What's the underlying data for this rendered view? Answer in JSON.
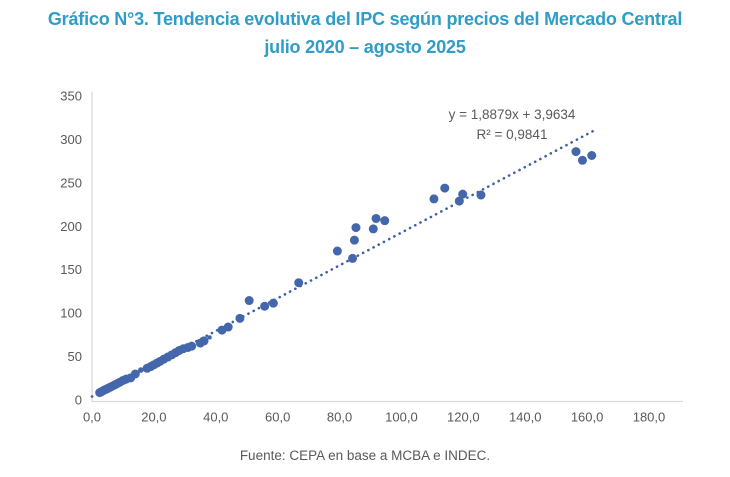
{
  "title": {
    "line1": "Gráfico N°3. Tendencia evolutiva del IPC según precios del Mercado Central",
    "line2": "julio 2020 – agosto 2025",
    "color": "#2f9dc8"
  },
  "annotation": {
    "equation": "y = 1,8879x + 3,9634",
    "r_squared": "R² = 0,9841"
  },
  "footer": "Fuente: CEPA en base a MCBA e INDEC.",
  "colors": {
    "point": "#4466ab",
    "trendline": "#3d5fa7",
    "axis_line": "#d9d9d9",
    "tick_text": "#595959"
  },
  "chart_data": {
    "type": "scatter",
    "title": "Gráfico N°3. Tendencia evolutiva del IPC según precios del Mercado Central julio 2020 – agosto 2025",
    "xlabel": "",
    "ylabel": "",
    "xlim": [
      0,
      180
    ],
    "ylim": [
      0,
      350
    ],
    "grid": false,
    "legend": false,
    "x_ticks": [
      {
        "value": 0,
        "label": "0,0"
      },
      {
        "value": 20,
        "label": "20,0"
      },
      {
        "value": 40,
        "label": "40,0"
      },
      {
        "value": 60,
        "label": "60,0"
      },
      {
        "value": 80,
        "label": "80,0"
      },
      {
        "value": 100,
        "label": "100,0"
      },
      {
        "value": 120,
        "label": "120,0"
      },
      {
        "value": 140,
        "label": "140,0"
      },
      {
        "value": 160,
        "label": "160,0"
      },
      {
        "value": 180,
        "label": "180,0"
      }
    ],
    "y_ticks": [
      {
        "value": 0,
        "label": "0"
      },
      {
        "value": 50,
        "label": "50"
      },
      {
        "value": 100,
        "label": "100"
      },
      {
        "value": 150,
        "label": "150"
      },
      {
        "value": 200,
        "label": "200"
      },
      {
        "value": 250,
        "label": "250"
      },
      {
        "value": 300,
        "label": "300"
      },
      {
        "value": 350,
        "label": "350"
      }
    ],
    "points": [
      [
        2.5,
        8.5
      ],
      [
        3.0,
        9.5
      ],
      [
        3.5,
        10.5
      ],
      [
        4.0,
        11.5
      ],
      [
        4.6,
        12.5
      ],
      [
        5.2,
        13.5
      ],
      [
        5.9,
        14.8
      ],
      [
        6.6,
        16.0
      ],
      [
        7.4,
        17.5
      ],
      [
        8.2,
        19.0
      ],
      [
        9.0,
        20.5
      ],
      [
        10.0,
        22.5
      ],
      [
        11.0,
        24.0
      ],
      [
        12.5,
        25.5
      ],
      [
        14.0,
        30.0
      ],
      [
        15.8,
        34.5,
        2.8
      ],
      [
        17.8,
        36.5
      ],
      [
        19.0,
        38.5
      ],
      [
        20.0,
        40.5
      ],
      [
        21.0,
        42.5
      ],
      [
        22.0,
        44.5
      ],
      [
        23.2,
        47.0
      ],
      [
        24.5,
        49.5
      ],
      [
        25.8,
        52.0
      ],
      [
        27.0,
        54.5
      ],
      [
        28.2,
        57.0
      ],
      [
        29.5,
        59.0
      ],
      [
        31.0,
        60.5
      ],
      [
        32.2,
        62.0
      ],
      [
        35.0,
        65.5
      ],
      [
        36.2,
        68.0
      ],
      [
        38.0,
        72.0,
        2.2
      ],
      [
        42.0,
        80.5
      ],
      [
        44.0,
        84.0
      ],
      [
        47.8,
        94.0
      ],
      [
        50.8,
        114.5
      ],
      [
        55.8,
        108.0
      ],
      [
        58.6,
        111.5
      ],
      [
        66.8,
        135.0
      ],
      [
        79.3,
        171.5
      ],
      [
        84.2,
        163.0
      ],
      [
        84.8,
        184.0
      ],
      [
        85.3,
        198.5
      ],
      [
        90.9,
        197.0
      ],
      [
        91.8,
        209.0
      ],
      [
        94.6,
        206.5
      ],
      [
        110.5,
        231.5
      ],
      [
        114.0,
        244.0
      ],
      [
        118.7,
        229.0
      ],
      [
        119.8,
        237.0
      ],
      [
        125.7,
        236.0
      ],
      [
        156.4,
        286.0
      ],
      [
        158.5,
        276.0
      ],
      [
        161.5,
        281.5
      ]
    ],
    "trendline": {
      "slope": 1.8879,
      "intercept": 3.9634,
      "x_start": 0,
      "x_end": 163,
      "style": "dotted",
      "equation_label": "y = 1,8879x + 3,9634",
      "r_squared": 0.9841
    }
  }
}
